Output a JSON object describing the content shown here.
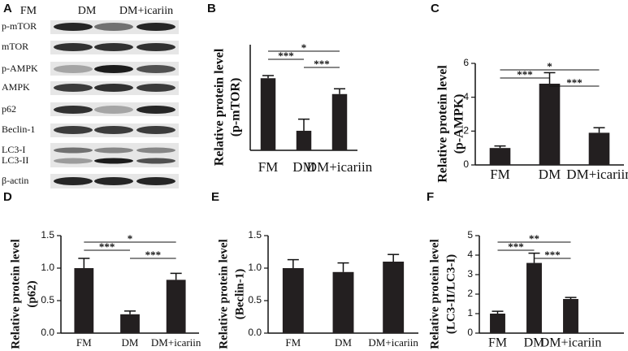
{
  "blot": {
    "letter": "A",
    "lanes": [
      "FM",
      "DM",
      "DM+icariin"
    ],
    "rows": [
      "p-mTOR",
      "mTOR",
      "p-AMPK",
      "AMPK",
      "p62",
      "Beclin-1",
      "LC3-I",
      "LC3-II",
      "β-actin"
    ]
  },
  "chart_data": [
    {
      "type": "bar",
      "panel": "B",
      "ylabel": [
        "Relative protein level",
        "(p-mTOR)"
      ],
      "categories": [
        "FM",
        "DM",
        "DM+icariin"
      ],
      "values": [
        2.73,
        0.74,
        2.13
      ],
      "errors": [
        0.1,
        0.44,
        0.2
      ],
      "color": "#231f20",
      "ylim": [
        0,
        4
      ],
      "comparisons": [
        {
          "from": "FM",
          "to": "DM+icariin",
          "label": "*"
        },
        {
          "from": "FM",
          "to": "DM",
          "label": "***"
        },
        {
          "from": "DM",
          "to": "DM+icariin",
          "label": "***"
        }
      ]
    },
    {
      "type": "bar",
      "panel": "C",
      "ylabel": [
        "Relative protein level",
        "(p-AMPK)"
      ],
      "categories": [
        "FM",
        "DM",
        "DM+icariin"
      ],
      "values": [
        1.0,
        4.8,
        1.9
      ],
      "errors": [
        0.12,
        0.65,
        0.3
      ],
      "color": "#231f20",
      "ylim": [
        0,
        6
      ],
      "yticks": [
        0,
        2,
        4,
        6
      ],
      "comparisons": [
        {
          "from": "FM",
          "to": "DM+icariin",
          "label": "*"
        },
        {
          "from": "FM",
          "to": "DM",
          "label": "***"
        },
        {
          "from": "DM",
          "to": "DM+icariin",
          "label": "***"
        }
      ]
    },
    {
      "type": "bar",
      "panel": "D",
      "ylabel": [
        "Relative protein level",
        "(p62)"
      ],
      "categories": [
        "FM",
        "DM",
        "DM+icariin"
      ],
      "values": [
        1.0,
        0.29,
        0.82
      ],
      "errors": [
        0.15,
        0.05,
        0.1
      ],
      "color": "#231f20",
      "ylim": [
        0,
        1.5
      ],
      "yticks": [
        {
          "value": 0,
          "label": "0.0"
        },
        0.5,
        {
          "value": 1,
          "label": "1.0"
        },
        1.5
      ],
      "comparisons": [
        {
          "from": "FM",
          "to": "DM+icariin",
          "label": "*"
        },
        {
          "from": "FM",
          "to": "DM",
          "label": "***"
        },
        {
          "from": "DM",
          "to": "DM+icariin",
          "label": "***"
        }
      ]
    },
    {
      "type": "bar",
      "panel": "E",
      "ylabel": [
        "Relative protein level",
        "(Beclin-1)"
      ],
      "categories": [
        "FM",
        "DM",
        "DM+icariin"
      ],
      "values": [
        1.0,
        0.94,
        1.1
      ],
      "errors": [
        0.13,
        0.14,
        0.11
      ],
      "color": "#231f20",
      "ylim": [
        0,
        1.5
      ],
      "yticks": [
        {
          "value": 0,
          "label": "0.0"
        },
        0.5,
        {
          "value": 1,
          "label": "1.0"
        },
        1.5
      ]
    },
    {
      "type": "bar",
      "panel": "F",
      "ylabel": [
        "Relative protein level",
        "(LC3-II/LC3-I)"
      ],
      "categories": [
        "FM",
        "DM",
        "DM+icariin"
      ],
      "values": [
        1.0,
        3.6,
        1.75
      ],
      "errors": [
        0.12,
        0.5,
        0.08
      ],
      "color": "#231f20",
      "ylim": [
        0,
        5
      ],
      "yticks": [
        0,
        1,
        2,
        3,
        4,
        5
      ],
      "comparisons": [
        {
          "from": "FM",
          "to": "DM+icariin",
          "label": "**"
        },
        {
          "from": "FM",
          "to": "DM",
          "label": "***"
        },
        {
          "from": "DM",
          "to": "DM+icariin",
          "label": "***"
        }
      ]
    }
  ]
}
